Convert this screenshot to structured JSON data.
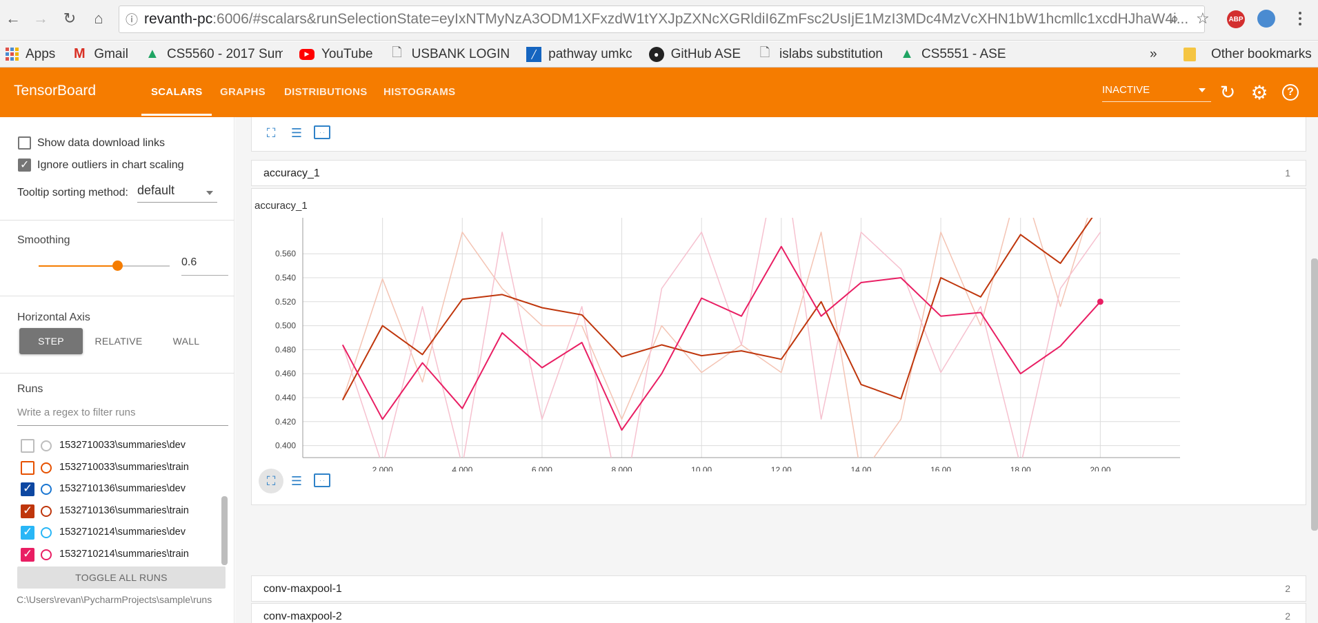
{
  "browser": {
    "url_host": "revanth-pc",
    "url_path": ":6006/#scalars&runSelectionState=eyIxNTMyNzA3ODM1XFxzdW1tYXJpZXNcXGRldiI6ZmFsc2UsIjE1MzI3MDc4MzVcXHN1bW1hcmllc1xcdHJhaW4i...",
    "ext_abp": "ABP"
  },
  "bookmarks": {
    "items": [
      "Apps",
      "Gmail",
      "CS5560 - 2017 Summ",
      "YouTube",
      "USBANK LOGIN",
      "pathway umkc",
      "GitHub ASE",
      "islabs substitution",
      "CS5551 - ASE"
    ],
    "overflow": "»",
    "other": "Other bookmarks"
  },
  "header": {
    "title": "TensorBoard",
    "tabs": [
      "SCALARS",
      "GRAPHS",
      "DISTRIBUTIONS",
      "HISTOGRAMS"
    ],
    "active_tab": "SCALARS",
    "run_status": "INACTIVE",
    "help_glyph": "?"
  },
  "sidebar": {
    "show_download_links": "Show data download links",
    "ignore_outliers": "Ignore outliers in chart scaling",
    "tooltip_sorting_label": "Tooltip sorting method:",
    "tooltip_sorting_value": "default",
    "smoothing_label": "Smoothing",
    "smoothing_value": "0.6",
    "smoothing_fraction": 0.6,
    "horizontal_axis_label": "Horizontal Axis",
    "axis_options": [
      "STEP",
      "RELATIVE",
      "WALL"
    ],
    "axis_selected": "STEP",
    "runs_label": "Runs",
    "runs_filter_placeholder": "Write a regex to filter runs",
    "runs": [
      {
        "name": "1532710033\\summaries\\dev",
        "checked": false,
        "color": "#bdbdbd"
      },
      {
        "name": "1532710033\\summaries\\train",
        "checked": false,
        "color": "#e65100"
      },
      {
        "name": "1532710136\\summaries\\dev",
        "checked": true,
        "color": "#0d47a1"
      },
      {
        "name": "1532710136\\summaries\\train",
        "checked": true,
        "color": "#bf360c"
      },
      {
        "name": "1532710214\\summaries\\dev",
        "checked": true,
        "color": "#29b6f6"
      },
      {
        "name": "1532710214\\summaries\\train",
        "checked": true,
        "color": "#e91e63"
      }
    ],
    "toggle_all": "TOGGLE ALL RUNS",
    "logdir": "C:\\Users\\revan\\PycharmProjects\\sample\\runs"
  },
  "main": {
    "categories": [
      {
        "title": "accuracy_1",
        "count": "1"
      },
      {
        "title": "conv-maxpool-1",
        "count": "2"
      },
      {
        "title": "conv-maxpool-2",
        "count": "2"
      }
    ]
  },
  "chart_data": {
    "type": "line",
    "title": "accuracy_1",
    "xlim": [
      0,
      22
    ],
    "ylim": [
      0.39,
      0.59
    ],
    "x_ticks": [
      "2.000",
      "4.000",
      "6.000",
      "8.000",
      "10.00",
      "12.00",
      "14.00",
      "16.00",
      "18.00",
      "20.00"
    ],
    "x_tick_values": [
      2,
      4,
      6,
      8,
      10,
      12,
      14,
      16,
      18,
      20
    ],
    "y_ticks": [
      "0.400",
      "0.420",
      "0.440",
      "0.460",
      "0.480",
      "0.500",
      "0.520",
      "0.540",
      "0.560"
    ],
    "y_tick_values": [
      0.4,
      0.42,
      0.44,
      0.46,
      0.48,
      0.5,
      0.52,
      0.54,
      0.56
    ],
    "grid": true,
    "series": [
      {
        "key": "136-train-raw",
        "color": "#f4c4b4",
        "width": 1.5,
        "x": [
          1,
          2,
          3,
          4,
          5,
          6,
          7,
          8,
          9,
          10,
          11,
          12,
          13,
          14,
          15,
          16,
          17,
          18,
          19,
          20
        ],
        "y": [
          0.438,
          0.539,
          0.453,
          0.578,
          0.531,
          0.5,
          0.5,
          0.422,
          0.5,
          0.461,
          0.484,
          0.461,
          0.578,
          0.375,
          0.422,
          0.578,
          0.5,
          0.625,
          0.516,
          0.625
        ]
      },
      {
        "key": "214-train-raw",
        "color": "#f6c1cf",
        "width": 1.5,
        "x": [
          1,
          2,
          3,
          4,
          5,
          6,
          7,
          8,
          9,
          10,
          11,
          12,
          13,
          14,
          15,
          16,
          17,
          18,
          19,
          20
        ],
        "y": [
          0.484,
          0.383,
          0.516,
          0.383,
          0.578,
          0.422,
          0.516,
          0.344,
          0.531,
          0.578,
          0.484,
          0.656,
          0.422,
          0.578,
          0.547,
          0.461,
          0.516,
          0.383,
          0.531,
          0.578
        ]
      },
      {
        "key": "136-train",
        "color": "#bf360c",
        "width": 2,
        "x": [
          1,
          2,
          3,
          4,
          5,
          6,
          7,
          8,
          9,
          10,
          11,
          12,
          13,
          14,
          15,
          16,
          17,
          18,
          19,
          20
        ],
        "y": [
          0.438,
          0.5,
          0.476,
          0.522,
          0.526,
          0.515,
          0.509,
          0.474,
          0.484,
          0.475,
          0.479,
          0.472,
          0.52,
          0.451,
          0.439,
          0.54,
          0.524,
          0.576,
          0.552,
          0.6
        ]
      },
      {
        "key": "214-train",
        "color": "#e91e63",
        "width": 2,
        "x": [
          1,
          2,
          3,
          4,
          5,
          6,
          7,
          8,
          9,
          10,
          11,
          12,
          13,
          14,
          15,
          16,
          17,
          18,
          19,
          20
        ],
        "y": [
          0.484,
          0.422,
          0.469,
          0.431,
          0.494,
          0.465,
          0.486,
          0.413,
          0.46,
          0.523,
          0.508,
          0.566,
          0.508,
          0.536,
          0.54,
          0.508,
          0.511,
          0.46,
          0.483,
          0.52
        ]
      }
    ],
    "highlight_point": {
      "x": 20,
      "y": 0.52,
      "color": "#e91e63"
    }
  }
}
